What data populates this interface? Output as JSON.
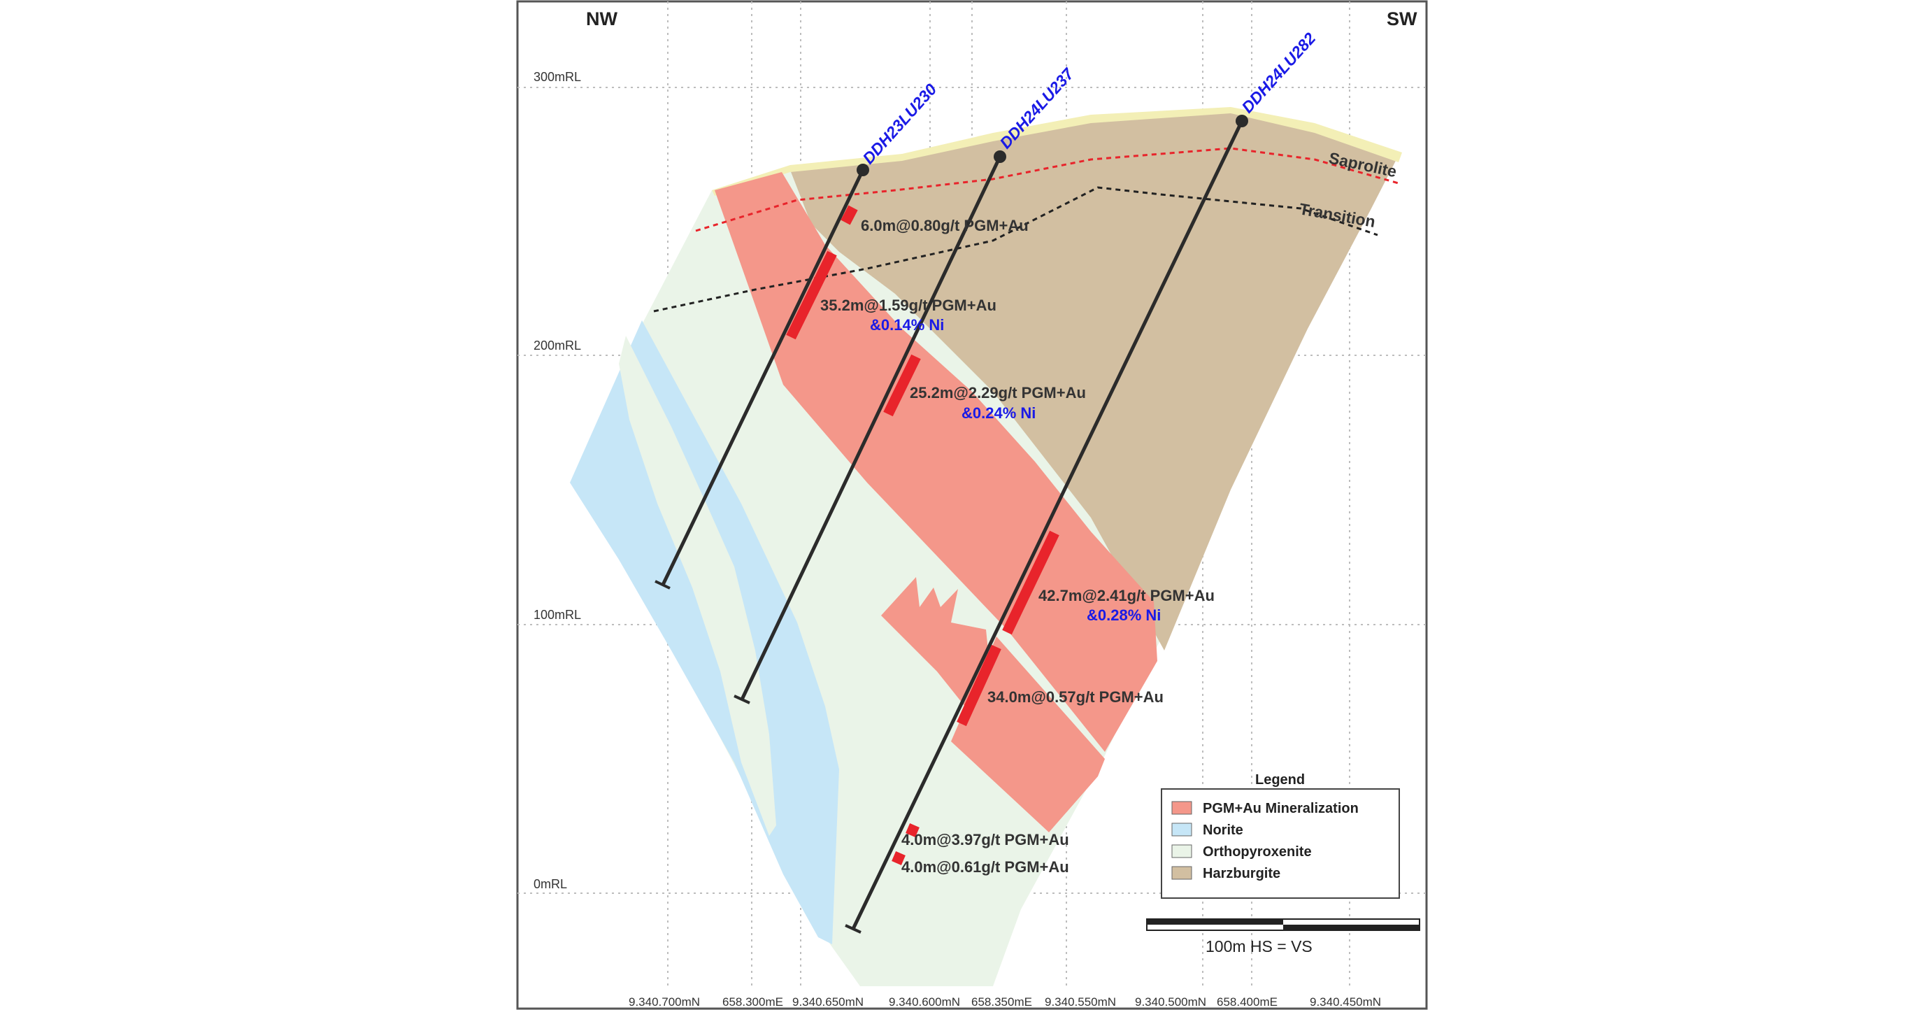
{
  "orientation": {
    "left": "NW",
    "right": "SW"
  },
  "elevation_labels": [
    "300mRL",
    "200mRL",
    "100mRL",
    "0mRL"
  ],
  "coordinate_labels": [
    "9.340.700mN",
    "658.300mE",
    "9.340.650mN",
    "9.340.600mN",
    "658.350mE",
    "9.340.550mN",
    "9.340.500mN",
    "658.400mE",
    "9.340.450mN"
  ],
  "drillholes": [
    {
      "id": "DDH23LU230"
    },
    {
      "id": "DDH24LU237"
    },
    {
      "id": "DDH24LU282"
    }
  ],
  "intercepts": [
    {
      "main": "6.0m@0.80g/t PGM+Au"
    },
    {
      "main": "35.2m@1.59g/t PGM+Au",
      "ni": "&0.14% Ni"
    },
    {
      "main": "25.2m@2.29g/t PGM+Au",
      "ni": "&0.24% Ni"
    },
    {
      "main": "42.7m@2.41g/t PGM+Au",
      "ni": "&0.28% Ni"
    },
    {
      "main": "34.0m@0.57g/t PGM+Au"
    },
    {
      "main": "4.0m@3.97g/t PGM+Au"
    },
    {
      "main": "4.0m@0.61g/t PGM+Au"
    }
  ],
  "zone_labels": {
    "saprolite": "Saprolite",
    "transition": "Transition"
  },
  "legend": {
    "title": "Legend",
    "items": [
      {
        "label": "PGM+Au Mineralization",
        "color": "#f4978a"
      },
      {
        "label": "Norite",
        "color": "#c6e6f7"
      },
      {
        "label": "Orthopyroxenite",
        "color": "#eaf4e8"
      },
      {
        "label": "Harzburgite",
        "color": "#d2bfa1"
      }
    ]
  },
  "scale": {
    "label": "100m  HS = VS"
  },
  "colors": {
    "mineralization": "#f4978a",
    "intercept": "#e8242b",
    "norite": "#c6e6f7",
    "orthopyroxenite": "#eaf4e8",
    "harzburgite": "#d2bfa1",
    "saprolite_line": "#e8242b",
    "hole_label": "#1a1ae6"
  }
}
